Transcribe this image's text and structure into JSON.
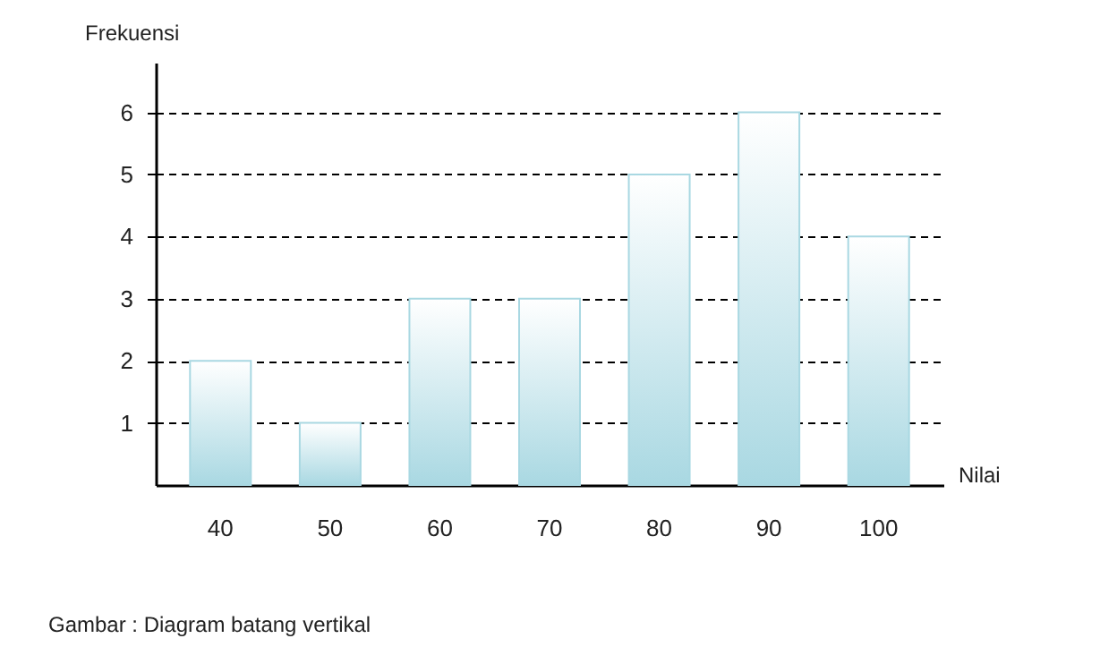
{
  "chart_data": {
    "type": "bar",
    "xlabel": "Nilai",
    "ylabel": "Frekuensi",
    "categories": [
      "40",
      "50",
      "60",
      "70",
      "80",
      "90",
      "100"
    ],
    "values": [
      2,
      1,
      3,
      3,
      5,
      6,
      4
    ],
    "color": "#a9d8e2",
    "ylim": [
      0,
      6.8
    ],
    "yticks": [
      1,
      2,
      3,
      4,
      5,
      6
    ],
    "grid": "y",
    "annotations": [
      "Gambar : Diagram batang vertikal"
    ]
  }
}
